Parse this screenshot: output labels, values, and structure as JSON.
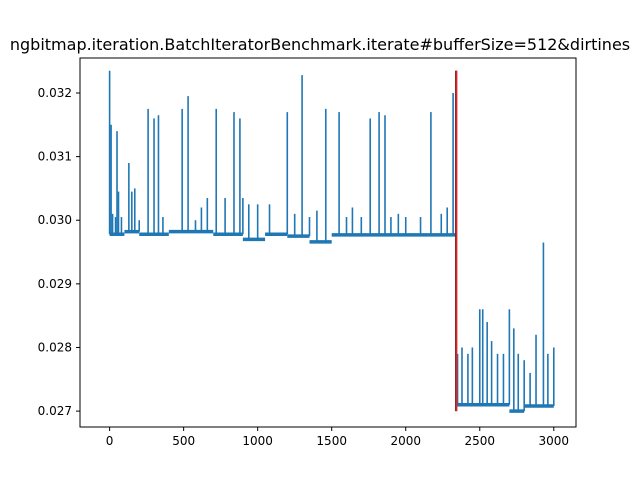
{
  "chart_data": {
    "type": "line",
    "title": "ngbitmap.iteration.BatchIteratorBenchmark.iterate#bufferSize=512&dirtines",
    "xlabel": "",
    "ylabel": "",
    "xlim": [
      -200,
      3150
    ],
    "ylim": [
      0.02675,
      0.03255
    ],
    "xticks": [
      0,
      500,
      1000,
      1500,
      2000,
      2500,
      3000
    ],
    "xtick_labels": [
      "0",
      "500",
      "1000",
      "1500",
      "2000",
      "2500",
      "3000"
    ],
    "yticks": [
      0.027,
      0.028,
      0.029,
      0.03,
      0.031,
      0.032
    ],
    "ytick_labels": [
      "0.027",
      "0.028",
      "0.029",
      "0.030",
      "0.031",
      "0.032"
    ],
    "grid": false,
    "series": [
      {
        "color": "#1f77b4",
        "baseline_segments": [
          {
            "x": [
              0,
              100
            ],
            "y": 0.02978
          },
          {
            "x": [
              100,
              200
            ],
            "y": 0.02982
          },
          {
            "x": [
              200,
              400
            ],
            "y": 0.02978
          },
          {
            "x": [
              400,
              700
            ],
            "y": 0.02982
          },
          {
            "x": [
              700,
              900
            ],
            "y": 0.02978
          },
          {
            "x": [
              900,
              1050
            ],
            "y": 0.0297
          },
          {
            "x": [
              1050,
              1200
            ],
            "y": 0.02978
          },
          {
            "x": [
              1200,
              1350
            ],
            "y": 0.02975
          },
          {
            "x": [
              1350,
              1500
            ],
            "y": 0.02966
          },
          {
            "x": [
              1500,
              2340
            ],
            "y": 0.02977
          },
          {
            "x": [
              2340,
              2700
            ],
            "y": 0.0271
          },
          {
            "x": [
              2700,
              2800
            ],
            "y": 0.027
          },
          {
            "x": [
              2800,
              3000
            ],
            "y": 0.02708
          }
        ],
        "spikes": [
          [
            0,
            0.03235
          ],
          [
            10,
            0.0315
          ],
          [
            20,
            0.0301
          ],
          [
            40,
            0.03005
          ],
          [
            50,
            0.0314
          ],
          [
            60,
            0.03045
          ],
          [
            80,
            0.03005
          ],
          [
            130,
            0.0309
          ],
          [
            150,
            0.03045
          ],
          [
            170,
            0.0305
          ],
          [
            200,
            0.03
          ],
          [
            260,
            0.03175
          ],
          [
            300,
            0.0316
          ],
          [
            330,
            0.03165
          ],
          [
            360,
            0.03005
          ],
          [
            490,
            0.03175
          ],
          [
            530,
            0.03195
          ],
          [
            580,
            0.03
          ],
          [
            620,
            0.0302
          ],
          [
            660,
            0.03035
          ],
          [
            720,
            0.03175
          ],
          [
            780,
            0.03035
          ],
          [
            840,
            0.0317
          ],
          [
            880,
            0.0316
          ],
          [
            900,
            0.03035
          ],
          [
            940,
            0.03025
          ],
          [
            1000,
            0.03025
          ],
          [
            1080,
            0.03025
          ],
          [
            1200,
            0.0317
          ],
          [
            1250,
            0.0301
          ],
          [
            1300,
            0.03228
          ],
          [
            1350,
            0.03005
          ],
          [
            1400,
            0.03015
          ],
          [
            1460,
            0.03175
          ],
          [
            1550,
            0.0317
          ],
          [
            1600,
            0.03005
          ],
          [
            1640,
            0.0302
          ],
          [
            1700,
            0.03005
          ],
          [
            1760,
            0.0316
          ],
          [
            1820,
            0.0317
          ],
          [
            1860,
            0.03165
          ],
          [
            1900,
            0.03005
          ],
          [
            1950,
            0.0301
          ],
          [
            2000,
            0.03005
          ],
          [
            2100,
            0.03005
          ],
          [
            2170,
            0.0317
          ],
          [
            2240,
            0.0301
          ],
          [
            2280,
            0.0302
          ],
          [
            2320,
            0.032
          ],
          [
            2350,
            0.0279
          ],
          [
            2380,
            0.028
          ],
          [
            2420,
            0.0279
          ],
          [
            2450,
            0.028
          ],
          [
            2500,
            0.0286
          ],
          [
            2520,
            0.0286
          ],
          [
            2550,
            0.0284
          ],
          [
            2580,
            0.0281
          ],
          [
            2620,
            0.0279
          ],
          [
            2660,
            0.0279
          ],
          [
            2700,
            0.0286
          ],
          [
            2730,
            0.0283
          ],
          [
            2760,
            0.0279
          ],
          [
            2800,
            0.0278
          ],
          [
            2840,
            0.0276
          ],
          [
            2880,
            0.0282
          ],
          [
            2930,
            0.02965
          ],
          [
            2960,
            0.0279
          ],
          [
            3000,
            0.028
          ]
        ]
      }
    ],
    "markers": [
      {
        "type": "vertical-line",
        "x": 2340,
        "y_range": [
          0.027,
          0.03235
        ],
        "color": "#000000"
      },
      {
        "type": "vertical-line",
        "x": 2342,
        "y_range": [
          0.027,
          0.03235
        ],
        "color": "#d62728"
      }
    ]
  }
}
